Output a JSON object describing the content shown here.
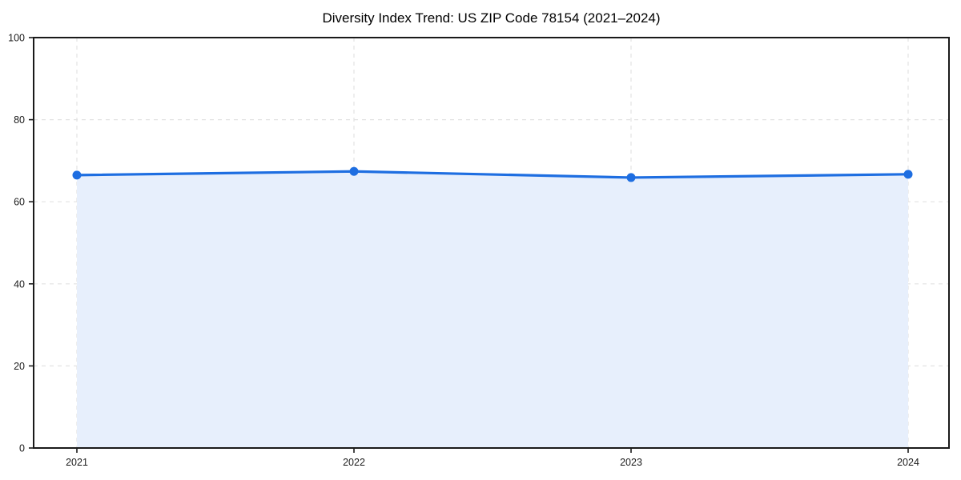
{
  "page": {
    "background": "#ffffff"
  },
  "chart_data": {
    "type": "line",
    "title": "Diversity Index Trend: US ZIP Code 78154 (2021–2024)",
    "x": [
      2021,
      2022,
      2023,
      2024
    ],
    "xtick_labels": [
      "2021",
      "2022",
      "2023",
      "2024"
    ],
    "values": [
      66.5,
      67.4,
      65.9,
      66.7
    ],
    "xlabel": "",
    "ylabel": "",
    "ylim": [
      0,
      100
    ],
    "yticks": [
      0,
      20,
      40,
      60,
      80,
      100
    ],
    "grid": true,
    "grid_style": "dashed",
    "area_fill": true,
    "markers": true,
    "legend": "none",
    "colors": {
      "line": "#1e6ee1",
      "marker": "#1e6ee1",
      "area_fill": "#e7effc",
      "grid": "#e2e2e2",
      "axis": "#1a1a1a",
      "tick_label": "#1a1a1a",
      "title": "#000000",
      "background": "#ffffff"
    }
  }
}
